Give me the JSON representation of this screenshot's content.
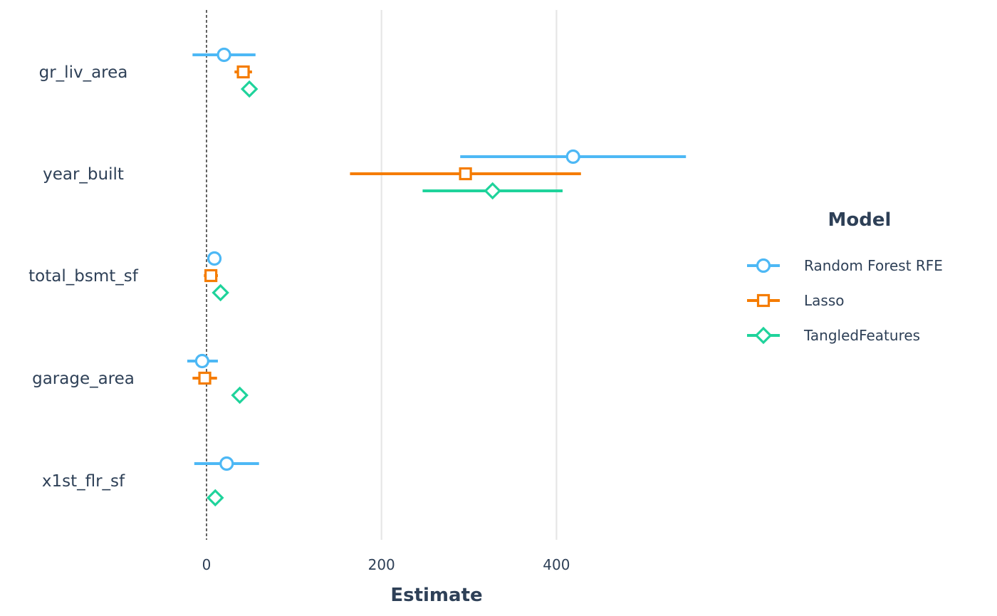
{
  "chart_data": {
    "type": "dot-whisker",
    "xlabel": "Estimate",
    "ylabel": "",
    "xlim": [
      -100,
      620
    ],
    "x_ticks": [
      0,
      200,
      400
    ],
    "x_tick_labels": [
      "0",
      "200",
      "400"
    ],
    "grid": "vertical major lines",
    "reference_line": {
      "x": 0,
      "style": "dashed"
    },
    "categories": [
      "gr_liv_area",
      "year_built",
      "total_bsmt_sf",
      "garage_area",
      "x1st_flr_sf"
    ],
    "legend": {
      "title": "Model",
      "position": "right"
    },
    "series": [
      {
        "name": "Random Forest RFE",
        "color": "#4db8f5",
        "marker": "circle",
        "points": [
          {
            "category": "gr_liv_area",
            "estimate": 20,
            "low": -16,
            "high": 56
          },
          {
            "category": "year_built",
            "estimate": 419,
            "low": 290,
            "high": 548
          },
          {
            "category": "total_bsmt_sf",
            "estimate": 9,
            "low": null,
            "high": null
          },
          {
            "category": "garage_area",
            "estimate": -5,
            "low": -22,
            "high": 13
          },
          {
            "category": "x1st_flr_sf",
            "estimate": 23,
            "low": -14,
            "high": 60
          }
        ]
      },
      {
        "name": "Lasso",
        "color": "#f57c00",
        "marker": "square",
        "points": [
          {
            "category": "gr_liv_area",
            "estimate": 42,
            "low": 32,
            "high": 52
          },
          {
            "category": "year_built",
            "estimate": 296,
            "low": 164,
            "high": 428
          },
          {
            "category": "total_bsmt_sf",
            "estimate": 5,
            "low": -3,
            "high": 13
          },
          {
            "category": "garage_area",
            "estimate": -2,
            "low": -16,
            "high": 12
          },
          {
            "category": "x1st_flr_sf",
            "estimate": null,
            "low": null,
            "high": null
          }
        ]
      },
      {
        "name": "TangledFeatures",
        "color": "#1fd39b",
        "marker": "diamond",
        "points": [
          {
            "category": "gr_liv_area",
            "estimate": 49,
            "low": null,
            "high": null
          },
          {
            "category": "year_built",
            "estimate": 327,
            "low": 247,
            "high": 407
          },
          {
            "category": "total_bsmt_sf",
            "estimate": 16,
            "low": null,
            "high": null
          },
          {
            "category": "garage_area",
            "estimate": 38,
            "low": 30,
            "high": 46
          },
          {
            "category": "x1st_flr_sf",
            "estimate": 10,
            "low": null,
            "high": null
          }
        ]
      }
    ]
  }
}
